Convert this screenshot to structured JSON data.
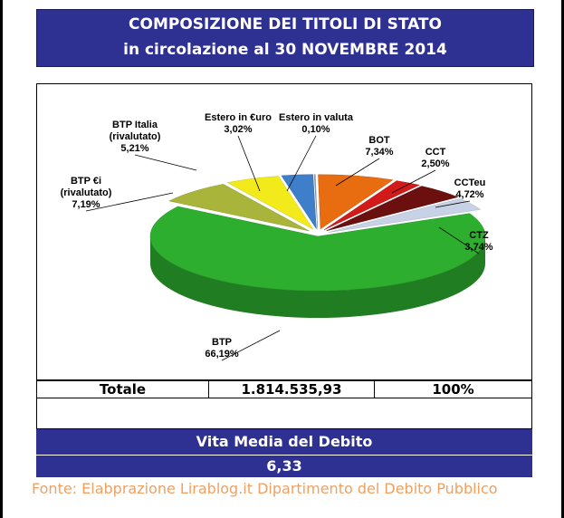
{
  "header": {
    "line1": "COMPOSIZIONE DEI TITOLI DI STATO",
    "line2": "in circolazione al  30 NOVEMBRE  2014"
  },
  "chart_data": {
    "type": "pie",
    "three_d": true,
    "slices": [
      {
        "label": "BTP",
        "value": 66.19,
        "text": "66,19%",
        "color": "#2eae2e"
      },
      {
        "label": "BTP €i (rivalutato)",
        "value": 7.19,
        "text": "7,19%",
        "color": "#a9b53a"
      },
      {
        "label": "BTP Italia (rivalutato)",
        "value": 5.21,
        "text": "5,21%",
        "color": "#f2ea1a"
      },
      {
        "label": "Estero in €uro",
        "value": 3.02,
        "text": "3,02%",
        "color": "#3f7fc9"
      },
      {
        "label": "Estero in valuta",
        "value": 0.1,
        "text": "0,10%",
        "color": "#9aa0a6"
      },
      {
        "label": "BOT",
        "value": 7.34,
        "text": "7,34%",
        "color": "#e86c10"
      },
      {
        "label": "CCT",
        "value": 2.5,
        "text": "2,50%",
        "color": "#d21a1a"
      },
      {
        "label": "CCTeu",
        "value": 4.72,
        "text": "4,72%",
        "color": "#6b0f0f"
      },
      {
        "label": "CTZ",
        "value": 3.74,
        "text": "3,74%",
        "color": "#c8d2e6"
      }
    ],
    "label_lines": [
      {
        "name": "BTP",
        "lines": [
          "BTP",
          "66,19%"
        ]
      },
      {
        "name": "BTP €i",
        "lines": [
          "BTP €i",
          "(rivalutato)",
          "7,19%"
        ]
      },
      {
        "name": "BTP Italia",
        "lines": [
          "BTP Italia",
          "(rivalutato)",
          "5,21%"
        ]
      },
      {
        "name": "Estero in €uro",
        "lines": [
          "Estero in €uro",
          "3,02%"
        ]
      },
      {
        "name": "Estero in valuta",
        "lines": [
          "Estero in valuta",
          "0,10%"
        ]
      },
      {
        "name": "BOT",
        "lines": [
          "BOT",
          "7,34%"
        ]
      },
      {
        "name": "CCT",
        "lines": [
          "CCT",
          "2,50%"
        ]
      },
      {
        "name": "CCTeu",
        "lines": [
          "CCTeu",
          "4,72%"
        ]
      },
      {
        "name": "CTZ",
        "lines": [
          "CTZ",
          "3,74%"
        ]
      }
    ]
  },
  "totals": {
    "label": "Totale",
    "amount": "1.814.535,93",
    "percent": "100%"
  },
  "vita": {
    "label": "Vita Media del Debito",
    "value": "6,33"
  },
  "source": "Fonte: Elabprazione Lirablog.it Dipartimento del Debito Pubblico"
}
